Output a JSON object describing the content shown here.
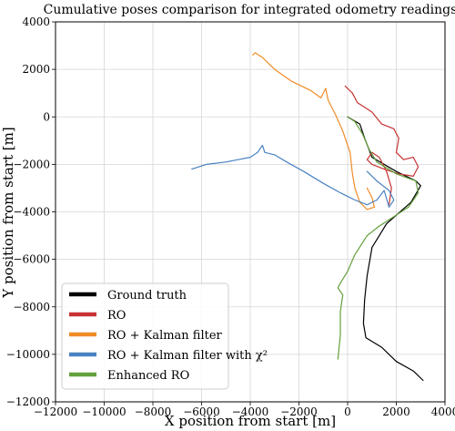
{
  "chart_data": {
    "type": "line",
    "title": "Cumulative poses comparison for integrated odometry readings",
    "xlabel": "X position from start [m]",
    "ylabel": "Y position from start [m]",
    "xlim": [
      -12000,
      4000
    ],
    "ylim": [
      -12000,
      4000
    ],
    "x_ticks": [
      -12000,
      -10000,
      -8000,
      -6000,
      -4000,
      -2000,
      0,
      2000,
      4000
    ],
    "y_ticks": [
      -12000,
      -10000,
      -8000,
      -6000,
      -4000,
      -2000,
      0,
      2000,
      4000
    ],
    "x_tick_labels": [
      "−12000",
      "−10000",
      "−8000",
      "−6000",
      "−4000",
      "−2000",
      "0",
      "2000",
      "4000"
    ],
    "y_tick_labels": [
      "−12000",
      "−10000",
      "−8000",
      "−6000",
      "−4000",
      "−2000",
      "0",
      "2000",
      "4000"
    ],
    "grid": true,
    "legend_position": "lower-left",
    "series": [
      {
        "name": "Ground truth",
        "color": "#000000",
        "points": [
          [
            0,
            0
          ],
          [
            500,
            -300
          ],
          [
            700,
            -900
          ],
          [
            1000,
            -1700
          ],
          [
            2000,
            -2300
          ],
          [
            2800,
            -2700
          ],
          [
            3000,
            -2900
          ],
          [
            2600,
            -3600
          ],
          [
            1600,
            -4500
          ],
          [
            1000,
            -5500
          ],
          [
            800,
            -6700
          ],
          [
            700,
            -7700
          ],
          [
            650,
            -8700
          ],
          [
            750,
            -9300
          ],
          [
            1400,
            -9700
          ],
          [
            2000,
            -10300
          ],
          [
            2700,
            -10700
          ],
          [
            3100,
            -11100
          ]
        ]
      },
      {
        "name": "RO",
        "color": "#c83232",
        "points": [
          [
            -100,
            1300
          ],
          [
            200,
            1000
          ],
          [
            400,
            600
          ],
          [
            700,
            400
          ],
          [
            1000,
            200
          ],
          [
            1400,
            -300
          ],
          [
            1900,
            -500
          ],
          [
            2100,
            -900
          ],
          [
            2000,
            -1500
          ],
          [
            2300,
            -1800
          ],
          [
            2700,
            -1700
          ],
          [
            2900,
            -2100
          ],
          [
            2700,
            -2500
          ],
          [
            2100,
            -2400
          ],
          [
            1500,
            -2200
          ],
          [
            1000,
            -2000
          ],
          [
            800,
            -1800
          ],
          [
            1000,
            -1500
          ],
          [
            1300,
            -1700
          ],
          [
            1600,
            -2300
          ],
          [
            1800,
            -3000
          ],
          [
            1700,
            -3700
          ]
        ]
      },
      {
        "name": "RO + Kalman filter",
        "color": "#f08c28",
        "points": [
          [
            -3900,
            2600
          ],
          [
            -3800,
            2700
          ],
          [
            -3500,
            2500
          ],
          [
            -3000,
            2000
          ],
          [
            -2300,
            1500
          ],
          [
            -1500,
            1100
          ],
          [
            -1100,
            800
          ],
          [
            -900,
            1200
          ],
          [
            -800,
            700
          ],
          [
            -500,
            100
          ],
          [
            -200,
            -600
          ],
          [
            100,
            -1500
          ],
          [
            200,
            -2400
          ],
          [
            300,
            -3000
          ],
          [
            500,
            -3600
          ],
          [
            800,
            -3900
          ],
          [
            1100,
            -3800
          ],
          [
            1000,
            -3400
          ],
          [
            800,
            -3000
          ]
        ]
      },
      {
        "name": "RO + Kalman filter with χ²",
        "color": "#4a81c2",
        "points": [
          [
            -6400,
            -2200
          ],
          [
            -5800,
            -2000
          ],
          [
            -5000,
            -1900
          ],
          [
            -4500,
            -1800
          ],
          [
            -4000,
            -1700
          ],
          [
            -3700,
            -1500
          ],
          [
            -3500,
            -1200
          ],
          [
            -3400,
            -1500
          ],
          [
            -3000,
            -1600
          ],
          [
            -2500,
            -1900
          ],
          [
            -1800,
            -2300
          ],
          [
            -1000,
            -2800
          ],
          [
            -300,
            -3200
          ],
          [
            300,
            -3500
          ],
          [
            800,
            -3700
          ],
          [
            1200,
            -3500
          ],
          [
            1500,
            -3100
          ],
          [
            1700,
            -3800
          ],
          [
            1900,
            -3500
          ],
          [
            1700,
            -3100
          ],
          [
            1200,
            -2700
          ],
          [
            800,
            -2300
          ]
        ]
      },
      {
        "name": "Enhanced RO",
        "color": "#64a03c",
        "points": [
          [
            0,
            0
          ],
          [
            300,
            -200
          ],
          [
            600,
            -700
          ],
          [
            900,
            -1400
          ],
          [
            1200,
            -1900
          ],
          [
            2000,
            -2400
          ],
          [
            2800,
            -2700
          ],
          [
            2900,
            -3200
          ],
          [
            2500,
            -3800
          ],
          [
            1900,
            -4200
          ],
          [
            1300,
            -4600
          ],
          [
            800,
            -5000
          ],
          [
            300,
            -5800
          ],
          [
            0,
            -6500
          ],
          [
            -300,
            -7000
          ],
          [
            -400,
            -7200
          ],
          [
            -200,
            -7500
          ],
          [
            -300,
            -8200
          ],
          [
            -300,
            -9200
          ],
          [
            -400,
            -10200
          ]
        ]
      }
    ]
  }
}
